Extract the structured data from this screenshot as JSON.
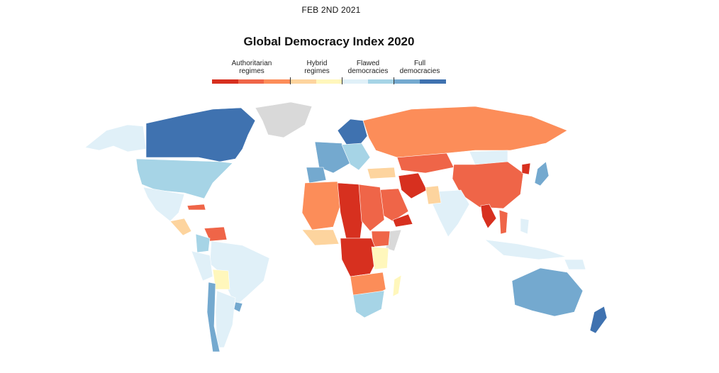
{
  "header": {
    "date": "FEB 2ND 2021"
  },
  "title": "Global Democracy Index 2020",
  "legend": {
    "groups": [
      {
        "label_line1": "Authoritarian",
        "label_line2": "regimes"
      },
      {
        "label_line1": "Hybrid",
        "label_line2": "regimes"
      },
      {
        "label_line1": "Flawed",
        "label_line2": "democracies"
      },
      {
        "label_line1": "Full",
        "label_line2": "democracies"
      }
    ],
    "scale_colors": [
      "#d7301f",
      "#ef6548",
      "#fc8d59",
      "#fdd49e",
      "#fff7bc",
      "#e0f0f8",
      "#a6d4e6",
      "#74a9cf",
      "#3f72b0"
    ]
  },
  "colors": {
    "no_data": "#d9d9d9",
    "authoritarian_dark": "#d7301f",
    "authoritarian_mid": "#ef6548",
    "authoritarian_light": "#fc8d59",
    "hybrid_dark": "#fdd49e",
    "hybrid_light": "#fff7bc",
    "flawed_light": "#e0f0f8",
    "flawed_dark": "#a6d4e6",
    "full_light": "#74a9cf",
    "full_dark": "#3f72b0"
  }
}
